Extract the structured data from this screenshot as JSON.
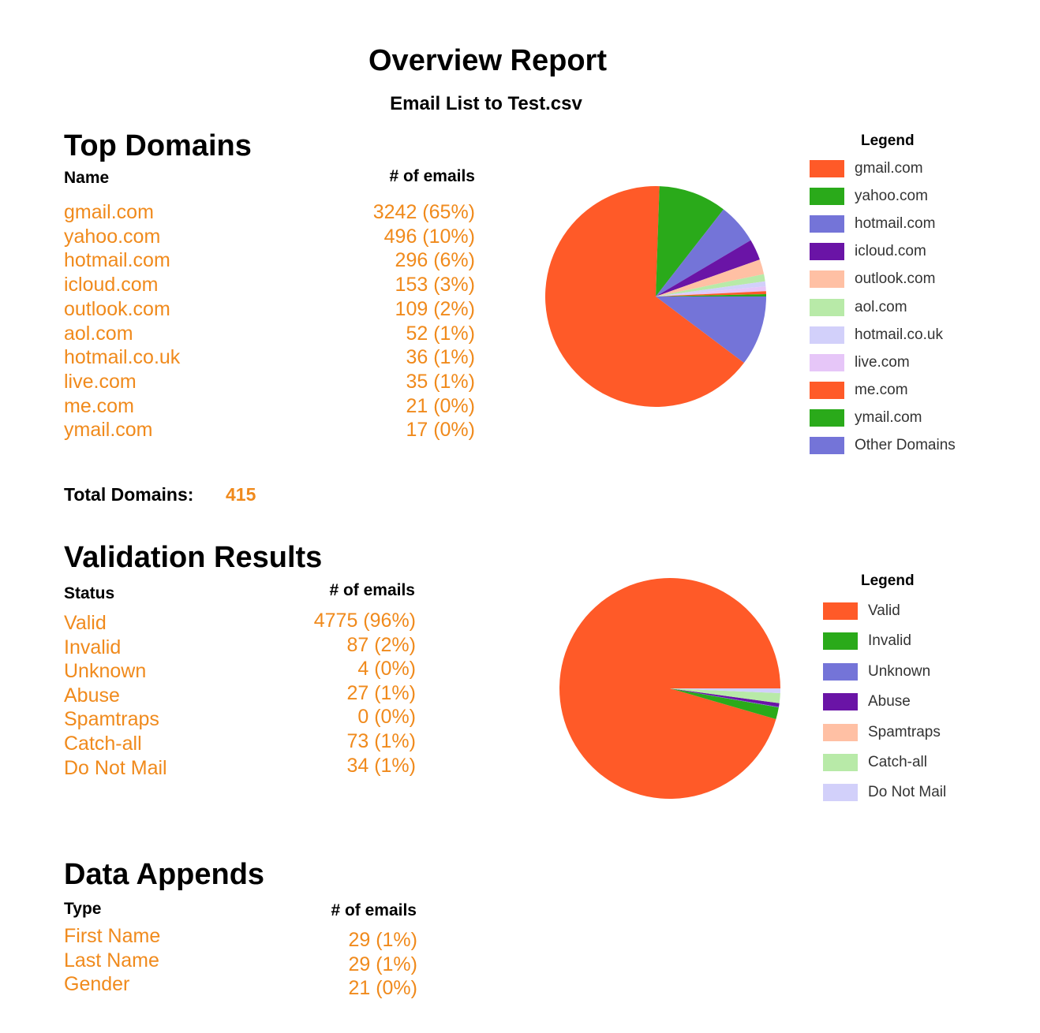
{
  "report": {
    "title": "Overview Report",
    "subtitle": "Email List to Test.csv"
  },
  "colors": {
    "accent_text": "#f08a1c",
    "palette": [
      "#ff5a28",
      "#2aaa1a",
      "#7474d8",
      "#6a14a6",
      "#ffc0a4",
      "#b8eaa8",
      "#d2d0fa",
      "#e6c6f8"
    ]
  },
  "top_domains": {
    "heading": "Top Domains",
    "col_name": "Name",
    "col_count": "# of emails",
    "rows": [
      {
        "name": "gmail.com",
        "count": "3242 (65%)"
      },
      {
        "name": "yahoo.com",
        "count": "496 (10%)"
      },
      {
        "name": "hotmail.com",
        "count": "296 (6%)"
      },
      {
        "name": "icloud.com",
        "count": "153 (3%)"
      },
      {
        "name": "outlook.com",
        "count": "109 (2%)"
      },
      {
        "name": "aol.com",
        "count": "52 (1%)"
      },
      {
        "name": "hotmail.co.uk",
        "count": "36 (1%)"
      },
      {
        "name": "live.com",
        "count": "35 (1%)"
      },
      {
        "name": "me.com",
        "count": "21 (0%)"
      },
      {
        "name": "ymail.com",
        "count": "17 (0%)"
      }
    ],
    "total_label": "Total Domains:",
    "total_value": "415",
    "legend_title": "Legend"
  },
  "validation": {
    "heading": "Validation Results",
    "col_name": "Status",
    "col_count": "# of emails",
    "rows": [
      {
        "name": "Valid",
        "count": "4775 (96%)"
      },
      {
        "name": "Invalid",
        "count": "87 (2%)"
      },
      {
        "name": "Unknown",
        "count": "4 (0%)"
      },
      {
        "name": "Abuse",
        "count": "27 (1%)"
      },
      {
        "name": "Spamtraps",
        "count": "0 (0%)"
      },
      {
        "name": "Catch-all",
        "count": "73 (1%)"
      },
      {
        "name": "Do Not Mail",
        "count": "34 (1%)"
      }
    ],
    "legend_title": "Legend"
  },
  "appends": {
    "heading": "Data Appends",
    "col_name": "Type",
    "col_count": "# of emails",
    "rows": [
      {
        "name": "First Name",
        "count": "29 (1%)"
      },
      {
        "name": "Last Name",
        "count": "29 (1%)"
      },
      {
        "name": "Gender",
        "count": "21 (0%)"
      }
    ]
  },
  "chart_data": [
    {
      "type": "pie",
      "title": "",
      "legend_title": "Legend",
      "legend_placement": "right",
      "start_angle_deg": 0,
      "direction": "clockwise",
      "categories": [
        "Other Domains",
        "gmail.com",
        "yahoo.com",
        "hotmail.com",
        "icloud.com",
        "outlook.com",
        "aol.com",
        "hotmail.co.uk",
        "live.com",
        "me.com",
        "ymail.com"
      ],
      "values": [
        510,
        3242,
        496,
        296,
        153,
        109,
        52,
        36,
        35,
        21,
        17
      ],
      "legend_order": [
        "gmail.com",
        "yahoo.com",
        "hotmail.com",
        "icloud.com",
        "outlook.com",
        "aol.com",
        "hotmail.co.uk",
        "live.com",
        "me.com",
        "ymail.com",
        "Other Domains"
      ],
      "colors": {
        "gmail.com": "#ff5a28",
        "yahoo.com": "#2aaa1a",
        "hotmail.com": "#7474d8",
        "icloud.com": "#6a14a6",
        "outlook.com": "#ffc0a4",
        "aol.com": "#b8eaa8",
        "hotmail.co.uk": "#d2d0fa",
        "live.com": "#e6c6f8",
        "me.com": "#ff5a28",
        "ymail.com": "#2aaa1a",
        "Other Domains": "#7474d8"
      }
    },
    {
      "type": "pie",
      "title": "",
      "legend_title": "Legend",
      "legend_placement": "right",
      "start_angle_deg": 0,
      "direction": "counterclockwise",
      "categories": [
        "Valid",
        "Invalid",
        "Unknown",
        "Abuse",
        "Spamtraps",
        "Catch-all",
        "Do Not Mail"
      ],
      "values": [
        4775,
        87,
        4,
        27,
        0,
        73,
        34
      ],
      "legend_order": [
        "Valid",
        "Invalid",
        "Unknown",
        "Abuse",
        "Spamtraps",
        "Catch-all",
        "Do Not Mail"
      ],
      "colors": {
        "Valid": "#ff5a28",
        "Invalid": "#2aaa1a",
        "Unknown": "#7474d8",
        "Abuse": "#6a14a6",
        "Spamtraps": "#ffc0a4",
        "Catch-all": "#b8eaa8",
        "Do Not Mail": "#d2d0fa"
      }
    }
  ]
}
